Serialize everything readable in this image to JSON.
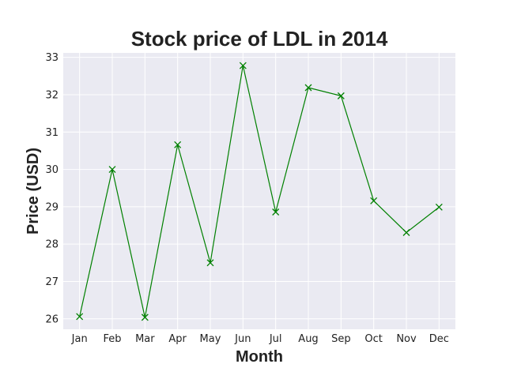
{
  "chart_data": {
    "type": "line",
    "title": "Stock price of LDL in 2014",
    "xlabel": "Month",
    "ylabel": "Price (USD)",
    "categories": [
      "Jan",
      "Feb",
      "Mar",
      "Apr",
      "May",
      "Jun",
      "Jul",
      "Aug",
      "Sep",
      "Oct",
      "Nov",
      "Dec"
    ],
    "series": [
      {
        "values": [
          26.06,
          30.0,
          26.04,
          30.66,
          27.5,
          32.78,
          28.86,
          32.19,
          31.97,
          29.16,
          28.31,
          28.99
        ],
        "color": "#008000",
        "marker": "x"
      }
    ],
    "ylim": [
      25.72,
      33.12
    ],
    "yticks": [
      26,
      27,
      28,
      29,
      30,
      31,
      32,
      33
    ],
    "grid": true,
    "background": "#eaeaf2",
    "grid_color": "#ffffff"
  }
}
